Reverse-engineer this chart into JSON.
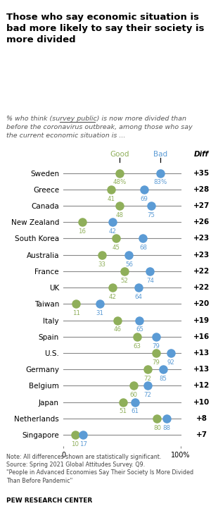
{
  "title": "Those who say economic situation is\nbad more likely to say their society is\nmore divided",
  "countries": [
    "Sweden",
    "Greece",
    "Canada",
    "New Zealand",
    "South Korea",
    "Australia",
    "France",
    "UK",
    "Taiwan",
    "Italy",
    "Spain",
    "U.S.",
    "Germany",
    "Belgium",
    "Japan",
    "Netherlands",
    "Singapore"
  ],
  "good": [
    48,
    41,
    48,
    16,
    45,
    33,
    52,
    42,
    11,
    46,
    63,
    79,
    72,
    60,
    51,
    80,
    10
  ],
  "bad": [
    83,
    69,
    75,
    42,
    68,
    56,
    74,
    64,
    31,
    65,
    79,
    92,
    85,
    72,
    61,
    88,
    17
  ],
  "diff": [
    "+35",
    "+28",
    "+27",
    "+26",
    "+23",
    "+23",
    "+22",
    "+22",
    "+20",
    "+19",
    "+16",
    "+13",
    "+13",
    "+12",
    "+10",
    "+8",
    "+7"
  ],
  "good_color": "#8faf5a",
  "bad_color": "#5b9bd5",
  "line_color": "#888888",
  "note": "Note: All differences shown are statistically significant.\nSource: Spring 2021 Global Attitudes Survey. Q9.\n\"People in Advanced Economies Say Their Society Is More Divided\nThan Before Pandemic\"",
  "footer": "PEW RESEARCH CENTER",
  "diff_bg": "#e8e8e8",
  "xmax": 100
}
